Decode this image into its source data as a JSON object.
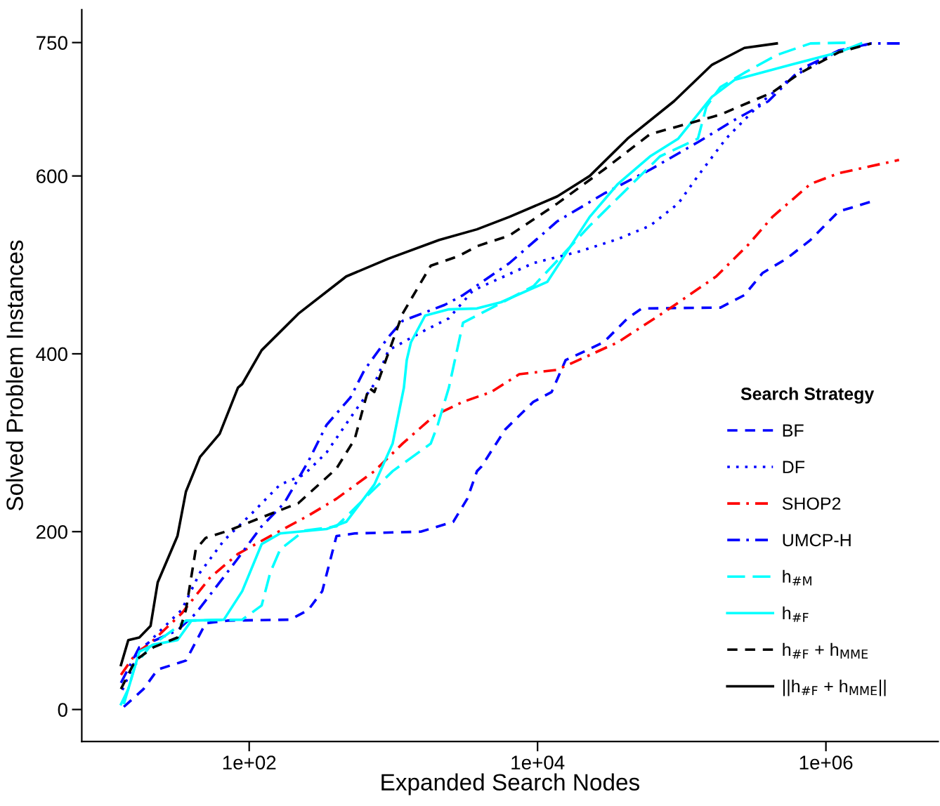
{
  "chart_data": {
    "type": "line",
    "xlabel": "Expanded Search Nodes",
    "ylabel": "Solved Problem Instances",
    "legend_title": "Search Strategy",
    "legend": "bottom right",
    "log": "x",
    "grid": false,
    "marker": "none",
    "xlim": [
      6.9,
      6000000
    ],
    "xticks": [
      {
        "value": 100,
        "label": "1e+02"
      },
      {
        "value": 10000,
        "label": "1e+04"
      },
      {
        "value": 1000000,
        "label": "1e+06"
      }
    ],
    "ylim": [
      -36,
      787
    ],
    "yticks": [
      0,
      200,
      400,
      600,
      750
    ],
    "series": [
      {
        "name": "BF",
        "color": "#0000ff",
        "line_style": "dashed",
        "x": [
          13.5,
          18.5,
          23.2,
          36.4,
          49.9,
          71.5,
          192,
          257,
          321,
          403,
          539,
          1549,
          2600,
          3254,
          3800,
          4072,
          5970,
          9354,
          12520,
          15670,
          18320,
          28770,
          42100,
          52720,
          185500,
          272000,
          364300,
          533200,
          781200,
          1224000,
          2052000
        ],
        "values": [
          3,
          23,
          45,
          55,
          97,
          100,
          101,
          112,
          133,
          195,
          198,
          200,
          211,
          237,
          268,
          273,
          315,
          346,
          357,
          393,
          398,
          413,
          440,
          451,
          452,
          466,
          491,
          507,
          528,
          560,
          571
        ]
      },
      {
        "name": "DF",
        "color": "#0000ff",
        "line_style": "dotted",
        "x": [
          13.2,
          17.3,
          25.4,
          34.0,
          45.6,
          66.7,
          105,
          164,
          240,
          344,
          539,
          738,
          925,
          1549,
          2427,
          3558,
          9354,
          19410,
          36060,
          60260,
          94620,
          129500,
          202800,
          364300,
          570400,
          1224000,
          2052000
        ],
        "values": [
          22,
          65,
          92,
          112,
          154,
          190,
          221,
          253,
          264,
          289,
          335,
          366,
          404,
          424,
          440,
          471,
          502,
          515,
          529,
          544,
          569,
          600,
          642,
          684,
          710,
          741,
          749
        ]
      },
      {
        "name": "SHOP2",
        "color": "#ff0000",
        "line_style": "dashdot",
        "x": [
          12.9,
          16.2,
          21.7,
          34.0,
          53.3,
          83.6,
          140,
          257,
          403,
          738,
          1157,
          1941,
          3042,
          4764,
          7464,
          13700,
          36060,
          82600,
          173400,
          290600,
          425900,
          781200,
          1224000,
          3214000
        ],
        "values": [
          39,
          62,
          78,
          108,
          148,
          175,
          195,
          218,
          237,
          268,
          299,
          331,
          346,
          357,
          377,
          382,
          413,
          451,
          487,
          523,
          554,
          591,
          603,
          618
        ]
      },
      {
        "name": "UMCP-H",
        "color": "#0000ff",
        "line_style": "dashdot",
        "x": [
          12.9,
          17.3,
          31.8,
          42.6,
          62.4,
          83.6,
          122,
          175,
          257,
          344,
          504,
          631,
          925,
          1157,
          2270,
          3042,
          6380,
          13700,
          28770,
          60260,
          129500,
          232300,
          398100,
          667100,
          1224000,
          2052000,
          3443000
        ],
        "values": [
          30,
          70,
          89,
          108,
          143,
          170,
          206,
          232,
          279,
          320,
          351,
          382,
          419,
          437,
          455,
          466,
          502,
          549,
          580,
          607,
          638,
          663,
          684,
          720,
          741,
          749,
          749
        ]
      },
      {
        "name": "h$_{#M}$",
        "color": "#00ffff",
        "line_style": "longdash",
        "x": [
          13.5,
          16.2,
          20.3,
          36.4,
          89.4,
          122,
          140,
          164,
          240,
          403,
          675,
          988,
          1815,
          2030,
          2427,
          3042,
          9354,
          23000,
          70630,
          129500,
          148300,
          185500,
          272000,
          456000,
          781200,
          1531000
        ],
        "values": [
          6,
          50,
          70,
          100,
          101,
          117,
          154,
          180,
          201,
          206,
          242,
          268,
          299,
          320,
          362,
          435,
          476,
          544,
          622,
          642,
          678,
          700,
          716,
          736,
          749,
          750
        ]
      },
      {
        "name": "h$_{#F}$",
        "color": "#00ffff",
        "line_style": "solid",
        "x": [
          12.9,
          14.5,
          17.3,
          21.7,
          31.8,
          39.8,
          66.7,
          89.4,
          122,
          164,
          344,
          471,
          738,
          988,
          1183,
          1238,
          1324,
          1660,
          2427,
          3800,
          5572,
          11700,
          23000,
          36060,
          60260,
          94620,
          162000,
          232300,
          570400,
          1224000,
          1753000
        ],
        "values": [
          6,
          23,
          65,
          73,
          78,
          100,
          101,
          133,
          186,
          198,
          203,
          211,
          253,
          299,
          362,
          393,
          413,
          443,
          450,
          451,
          458,
          481,
          554,
          591,
          622,
          642,
          689,
          708,
          725,
          739,
          749
        ]
      },
      {
        "name": "h$_{#F}$ + h$_{MME}$",
        "color": "#000000",
        "line_style": "dashed",
        "x": [
          12.9,
          16.2,
          21.7,
          31.8,
          36.4,
          42.6,
          49.9,
          71.5,
          131,
          219,
          403,
          539,
          675,
          738,
          1157,
          1815,
          2843,
          3800,
          6380,
          13700,
          28770,
          60260,
          185500,
          425900,
          667100,
          1224000,
          2052000
        ],
        "values": [
          23,
          55,
          70,
          81,
          112,
          180,
          193,
          201,
          218,
          232,
          271,
          304,
          362,
          357,
          445,
          499,
          510,
          521,
          533,
          569,
          607,
          647,
          669,
          694,
          716,
          739,
          749
        ]
      },
      {
        "name": "||h$_{#F}$ + h$_{MME}$||",
        "color": "#000000",
        "line_style": "solid",
        "x": [
          12.9,
          14.5,
          17.3,
          20.7,
          23.2,
          31.8,
          36.4,
          45.6,
          62.4,
          83.6,
          89.4,
          122,
          219,
          471,
          925,
          2080,
          3800,
          6380,
          13700,
          23000,
          42100,
          88300,
          162000,
          272000,
          456000
        ],
        "values": [
          50,
          78,
          81,
          94,
          143,
          195,
          245,
          284,
          310,
          362,
          366,
          404,
          445,
          487,
          507,
          528,
          540,
          554,
          577,
          600,
          642,
          684,
          725,
          744,
          749
        ]
      }
    ]
  }
}
